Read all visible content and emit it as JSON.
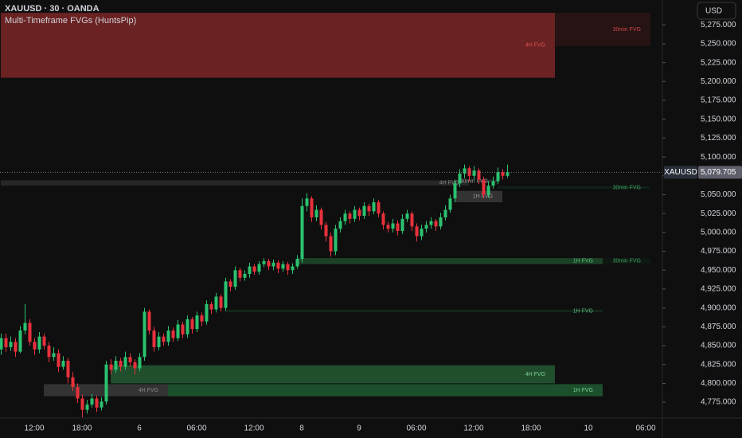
{
  "chart_data": {
    "type": "candlestick",
    "title": "XAUUSD · 30 · OANDA",
    "subtitle": "Multi-Timeframe FVGs (HuntsPip)",
    "currency": "USD",
    "symbol": "XAUUSD",
    "last_price": {
      "value": 5079.705,
      "label": "5,079.705"
    },
    "up_color": "#2bc26f",
    "down_color": "#e8313b",
    "grid": false,
    "ylim": [
      4754,
      5308
    ],
    "yticks": [
      {
        "value": 4775,
        "label": "4,775.000"
      },
      {
        "value": 4800,
        "label": "4,800.000"
      },
      {
        "value": 4825,
        "label": "4,825.000"
      },
      {
        "value": 4850,
        "label": "4,850.000"
      },
      {
        "value": 4875,
        "label": "4,875.000"
      },
      {
        "value": 4900,
        "label": "4,900.000"
      },
      {
        "value": 4925,
        "label": "4,925.000"
      },
      {
        "value": 4950,
        "label": "4,950.000"
      },
      {
        "value": 4975,
        "label": "4,975.000"
      },
      {
        "value": 5000,
        "label": "5,000.000"
      },
      {
        "value": 5025,
        "label": "5,025.000"
      },
      {
        "value": 5050,
        "label": "5,050.000"
      },
      {
        "value": 5075,
        "label": "5,075.000"
      },
      {
        "value": 5100,
        "label": "5,100.000"
      },
      {
        "value": 5125,
        "label": "5,125.000"
      },
      {
        "value": 5150,
        "label": "5,150.000"
      },
      {
        "value": 5175,
        "label": "5,175.000"
      },
      {
        "value": 5200,
        "label": "5,200.000"
      },
      {
        "value": 5225,
        "label": "5,225.000"
      },
      {
        "value": 5250,
        "label": "5,250.000"
      },
      {
        "value": 5275,
        "label": "5,275.000"
      }
    ],
    "categories": [
      null,
      null,
      null,
      null,
      null,
      null,
      null,
      "12:00",
      null,
      null,
      null,
      null,
      null,
      null,
      null,
      null,
      null,
      "18:00",
      null,
      null,
      null,
      null,
      null,
      null,
      null,
      null,
      null,
      null,
      null,
      "6",
      null,
      null,
      null,
      null,
      null,
      null,
      null,
      null,
      null,
      null,
      null,
      "06:00",
      null,
      null,
      null,
      null,
      null,
      null,
      null,
      null,
      null,
      null,
      null,
      "12:00",
      null,
      null,
      null,
      null,
      null,
      null,
      null,
      null,
      null,
      "8",
      null,
      null,
      null,
      null,
      null,
      null,
      null,
      null,
      null,
      null,
      null,
      "9",
      null,
      null,
      null,
      null,
      null,
      null,
      null,
      null,
      null,
      null,
      null,
      "06:00",
      null,
      null,
      null,
      null,
      null,
      null,
      null,
      null,
      null,
      null,
      null,
      "12:00",
      null,
      null,
      null,
      null,
      null,
      null,
      null,
      null,
      null,
      null,
      null,
      "18:00",
      null,
      null,
      null,
      null,
      null,
      null,
      null,
      null,
      null,
      null,
      null,
      "10",
      null,
      null,
      null,
      null,
      null,
      null,
      null,
      null,
      null,
      null,
      null,
      "06:00",
      null,
      null
    ],
    "ohlc": [
      [
        4845,
        4866,
        4838,
        4860
      ],
      [
        4860,
        4866,
        4842,
        4848
      ],
      [
        4848,
        4862,
        4843,
        4855
      ],
      [
        4855,
        4860,
        4835,
        4842
      ],
      [
        4842,
        4876,
        4840,
        4870
      ],
      [
        4870,
        4905,
        4865,
        4880
      ],
      [
        4880,
        4885,
        4850,
        4855
      ],
      [
        4855,
        4860,
        4838,
        4845
      ],
      [
        4845,
        4868,
        4840,
        4862
      ],
      [
        4862,
        4866,
        4845,
        4850
      ],
      [
        4850,
        4855,
        4828,
        4835
      ],
      [
        4835,
        4848,
        4830,
        4840
      ],
      [
        4840,
        4845,
        4815,
        4822
      ],
      [
        4822,
        4836,
        4818,
        4830
      ],
      [
        4830,
        4834,
        4800,
        4808
      ],
      [
        4808,
        4815,
        4790,
        4795
      ],
      [
        4795,
        4800,
        4774,
        4780
      ],
      [
        4780,
        4785,
        4755,
        4765
      ],
      [
        4765,
        4778,
        4760,
        4772
      ],
      [
        4772,
        4786,
        4768,
        4780
      ],
      [
        4780,
        4784,
        4762,
        4768
      ],
      [
        4768,
        4782,
        4764,
        4776
      ],
      [
        4776,
        4830,
        4772,
        4825
      ],
      [
        4825,
        4832,
        4812,
        4818
      ],
      [
        4818,
        4836,
        4814,
        4830
      ],
      [
        4830,
        4834,
        4816,
        4822
      ],
      [
        4822,
        4842,
        4818,
        4835
      ],
      [
        4835,
        4840,
        4822,
        4828
      ],
      [
        4828,
        4832,
        4812,
        4820
      ],
      [
        4820,
        4840,
        4816,
        4835
      ],
      [
        4835,
        4900,
        4830,
        4895
      ],
      [
        4895,
        4898,
        4865,
        4870
      ],
      [
        4870,
        4875,
        4842,
        4848
      ],
      [
        4848,
        4868,
        4844,
        4862
      ],
      [
        4862,
        4866,
        4850,
        4855
      ],
      [
        4855,
        4876,
        4850,
        4870
      ],
      [
        4870,
        4874,
        4855,
        4860
      ],
      [
        4860,
        4884,
        4856,
        4878
      ],
      [
        4878,
        4882,
        4860,
        4865
      ],
      [
        4865,
        4890,
        4860,
        4885
      ],
      [
        4885,
        4888,
        4866,
        4872
      ],
      [
        4872,
        4895,
        4868,
        4890
      ],
      [
        4890,
        4894,
        4876,
        4882
      ],
      [
        4882,
        4910,
        4878,
        4905
      ],
      [
        4905,
        4908,
        4892,
        4898
      ],
      [
        4898,
        4920,
        4894,
        4915
      ],
      [
        4915,
        4918,
        4895,
        4900
      ],
      [
        4900,
        4940,
        4896,
        4935
      ],
      [
        4935,
        4938,
        4922,
        4928
      ],
      [
        4928,
        4955,
        4924,
        4950
      ],
      [
        4950,
        4953,
        4935,
        4940
      ],
      [
        4940,
        4950,
        4936,
        4945
      ],
      [
        4945,
        4960,
        4940,
        4955
      ],
      [
        4955,
        4958,
        4944,
        4948
      ],
      [
        4948,
        4962,
        4944,
        4958
      ],
      [
        4958,
        4966,
        4954,
        4962
      ],
      [
        4962,
        4965,
        4950,
        4955
      ],
      [
        4955,
        4964,
        4950,
        4960
      ],
      [
        4960,
        4963,
        4946,
        4952
      ],
      [
        4952,
        4962,
        4948,
        4958
      ],
      [
        4958,
        4961,
        4944,
        4950
      ],
      [
        4950,
        4959,
        4945,
        4955
      ],
      [
        4955,
        4970,
        4952,
        4965
      ],
      [
        4965,
        5045,
        4960,
        5035
      ],
      [
        5035,
        5052,
        5028,
        5045
      ],
      [
        5045,
        5048,
        5014,
        5020
      ],
      [
        5020,
        5036,
        5015,
        5030
      ],
      [
        5030,
        5033,
        5004,
        5010
      ],
      [
        5010,
        5014,
        4988,
        4995
      ],
      [
        4995,
        5000,
        4968,
        4975
      ],
      [
        4975,
        5010,
        4970,
        5005
      ],
      [
        5005,
        5020,
        5000,
        5015
      ],
      [
        5015,
        5030,
        5010,
        5025
      ],
      [
        5025,
        5028,
        5012,
        5018
      ],
      [
        5018,
        5035,
        5014,
        5030
      ],
      [
        5030,
        5033,
        5016,
        5022
      ],
      [
        5022,
        5040,
        5018,
        5035
      ],
      [
        5035,
        5038,
        5022,
        5028
      ],
      [
        5028,
        5045,
        5024,
        5040
      ],
      [
        5040,
        5043,
        5020,
        5025
      ],
      [
        5025,
        5028,
        5004,
        5010
      ],
      [
        5010,
        5014,
        5000,
        5005
      ],
      [
        5005,
        5018,
        5000,
        5012
      ],
      [
        5012,
        5016,
        4996,
        5002
      ],
      [
        5002,
        5024,
        4998,
        5018
      ],
      [
        5018,
        5030,
        5014,
        5025
      ],
      [
        5025,
        5028,
        5002,
        5008
      ],
      [
        5008,
        5012,
        4988,
        4995
      ],
      [
        4995,
        5010,
        4990,
        5005
      ],
      [
        5005,
        5015,
        5000,
        5010
      ],
      [
        5010,
        5020,
        5005,
        5015
      ],
      [
        5015,
        5018,
        5002,
        5008
      ],
      [
        5008,
        5026,
        5004,
        5020
      ],
      [
        5020,
        5036,
        5016,
        5030
      ],
      [
        5030,
        5050,
        5026,
        5045
      ],
      [
        5045,
        5070,
        5040,
        5065
      ],
      [
        5065,
        5084,
        5060,
        5078
      ],
      [
        5078,
        5090,
        5072,
        5085
      ],
      [
        5085,
        5088,
        5068,
        5075
      ],
      [
        5075,
        5088,
        5070,
        5082
      ],
      [
        5082,
        5085,
        5064,
        5070
      ],
      [
        5070,
        5074,
        5045,
        5050
      ],
      [
        5050,
        5068,
        5046,
        5062
      ],
      [
        5062,
        5074,
        5058,
        5068
      ],
      [
        5068,
        5086,
        5064,
        5080
      ],
      [
        5080,
        5084,
        5070,
        5075
      ],
      [
        5075,
        5090,
        5072,
        5079.705
      ],
      null,
      null,
      null,
      null,
      null,
      null,
      null,
      null,
      null,
      null,
      null,
      null,
      null,
      null,
      null,
      null,
      null,
      null,
      null,
      null,
      null,
      null,
      null,
      null,
      null,
      null,
      null,
      null,
      null,
      null,
      null
    ],
    "zones": [
      {
        "label": "4H FVG",
        "top": 5291,
        "bottom": 5205,
        "x0": 0,
        "x1": 116,
        "color": "#7a2626",
        "label_color": "#e0504f"
      },
      {
        "label": "30min FVG",
        "top": 5291,
        "bottom": 5247,
        "x0": 116,
        "x1": 136,
        "color": "#2a1414",
        "label_color": "#d04848"
      },
      {
        "label": "4H FVG",
        "top": 5069,
        "bottom": 5062,
        "x0": 0,
        "x1": 98,
        "color": "#2c2c2c",
        "label_color": "#8a8a8a"
      },
      {
        "label": "30min FVG",
        "top": 5070,
        "bottom": 5066,
        "x0": 100,
        "x1": 104,
        "color": "#2a2a2a",
        "label_color": "#9a9a9a"
      },
      {
        "label": "30min FVG",
        "top": 5061,
        "bottom": 5058,
        "x0": 104,
        "x1": 136,
        "color": "#10261a",
        "label_color": "#3aa55f"
      },
      {
        "label": "1H FVG",
        "top": 5055,
        "bottom": 5040,
        "x0": 95,
        "x1": 105,
        "color": "#3a3a3a",
        "label_color": "#9a9a9a"
      },
      {
        "label": "1H FVG",
        "top": 4966,
        "bottom": 4958,
        "x0": 62,
        "x1": 126,
        "color": "#1e4a2c",
        "label_color": "#56c078"
      },
      {
        "label": "30min FVG",
        "top": 4966,
        "bottom": 4958,
        "x0": 126,
        "x1": 136,
        "color": "#0f1a13",
        "label_color": "#3aa55f"
      },
      {
        "label": "1H FVG",
        "top": 4897,
        "bottom": 4895,
        "x0": 47,
        "x1": 126,
        "color": "#173a22",
        "label_color": "#56c078"
      },
      {
        "label": "4H FVG",
        "top": 4824,
        "bottom": 4800,
        "x0": 23,
        "x1": 116,
        "color": "#245a32",
        "label_color": "#7ad095"
      },
      {
        "label": "4H FVG",
        "top": 4799,
        "bottom": 4783,
        "x0": 9,
        "x1": 35,
        "color": "#3a3a3a",
        "label_color": "#8a8a8a"
      },
      {
        "label": "1H FVG",
        "top": 4799,
        "bottom": 4783,
        "x0": 35,
        "x1": 126,
        "color": "#1f5a30",
        "label_color": "#7ad095"
      }
    ]
  }
}
